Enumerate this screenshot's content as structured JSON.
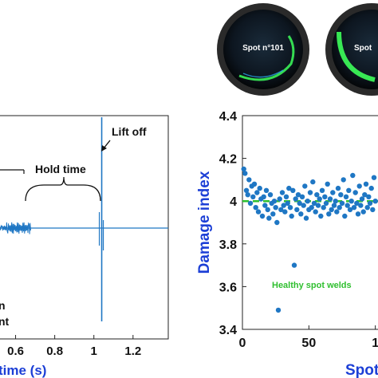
{
  "photos": [
    {
      "label": "Spot n°101"
    },
    {
      "label": "Spot"
    }
  ],
  "colors": {
    "trace": "#1f77c4",
    "points": "#1f77c4",
    "healthy_line": "#2fbf2f",
    "axis_label": "#1c3fd6",
    "ring_glow": "#3dff5a"
  },
  "chart_data": [
    {
      "type": "line",
      "xlabel": "time (s)",
      "xticks": [
        "0.6",
        "0.8",
        "1",
        "1.2"
      ],
      "xlim": [
        0.5,
        1.38
      ],
      "annotations": {
        "hold_time": "Hold time",
        "lift_off": "Lift off",
        "left_fragment_1": "n",
        "left_fragment_2": "nt"
      },
      "events": {
        "weld_end": 0.68,
        "lift_off": 1.04
      }
    },
    {
      "type": "scatter",
      "ylabel": "Damage index",
      "xlabel": "Spot",
      "xticks": [
        "0",
        "50",
        "1"
      ],
      "yticks": [
        "3.4",
        "3.6",
        "3.8",
        "4",
        "4.2",
        "4.4"
      ],
      "xlim": [
        0,
        108
      ],
      "ylim": [
        3.4,
        4.4
      ],
      "threshold": {
        "value": 4.0,
        "label": "Healthy spot welds"
      },
      "points": [
        [
          1,
          4.15
        ],
        [
          2,
          4.13
        ],
        [
          3,
          4.05
        ],
        [
          4,
          4.03
        ],
        [
          5,
          4.1
        ],
        [
          6,
          3.99
        ],
        [
          7,
          4.07
        ],
        [
          8,
          4.02
        ],
        [
          9,
          4.08
        ],
        [
          10,
          3.97
        ],
        [
          11,
          4.04
        ],
        [
          12,
          3.95
        ],
        [
          13,
          4.06
        ],
        [
          14,
          4.01
        ],
        [
          15,
          3.93
        ],
        [
          16,
          4.02
        ],
        [
          17,
          3.98
        ],
        [
          18,
          4.05
        ],
        [
          19,
          3.96
        ],
        [
          20,
          3.92
        ],
        [
          21,
          4.03
        ],
        [
          22,
          3.99
        ],
        [
          23,
          3.94
        ],
        [
          24,
          4.0
        ],
        [
          25,
          3.97
        ],
        [
          26,
          3.9
        ],
        [
          27,
          3.49
        ],
        [
          28,
          4.01
        ],
        [
          29,
          3.96
        ],
        [
          30,
          4.04
        ],
        [
          31,
          3.98
        ],
        [
          32,
          3.95
        ],
        [
          33,
          4.02
        ],
        [
          34,
          3.99
        ],
        [
          35,
          4.06
        ],
        [
          36,
          3.97
        ],
        [
          37,
          3.93
        ],
        [
          38,
          4.05
        ],
        [
          39,
          3.7
        ],
        [
          40,
          4.01
        ],
        [
          41,
          3.96
        ],
        [
          42,
          4.03
        ],
        [
          43,
          3.99
        ],
        [
          44,
          3.94
        ],
        [
          45,
          4.02
        ],
        [
          46,
          3.98
        ],
        [
          47,
          4.07
        ],
        [
          48,
          3.92
        ],
        [
          49,
          4.0
        ],
        [
          50,
          3.96
        ],
        [
          51,
          4.04
        ],
        [
          52,
          3.97
        ],
        [
          53,
          4.09
        ],
        [
          54,
          3.99
        ],
        [
          55,
          3.95
        ],
        [
          56,
          4.03
        ],
        [
          57,
          3.98
        ],
        [
          58,
          4.01
        ],
        [
          59,
          3.93
        ],
        [
          60,
          4.05
        ],
        [
          61,
          3.97
        ],
        [
          62,
          4.02
        ],
        [
          63,
          3.99
        ],
        [
          64,
          4.08
        ],
        [
          65,
          3.94
        ],
        [
          66,
          4.01
        ],
        [
          67,
          3.96
        ],
        [
          68,
          4.04
        ],
        [
          69,
          3.98
        ],
        [
          70,
          4.0
        ],
        [
          71,
          3.95
        ],
        [
          72,
          4.06
        ],
        [
          73,
          3.97
        ],
        [
          74,
          4.03
        ],
        [
          75,
          3.99
        ],
        [
          76,
          4.1
        ],
        [
          77,
          3.93
        ],
        [
          78,
          4.02
        ],
        [
          79,
          3.98
        ],
        [
          80,
          4.05
        ],
        [
          81,
          3.96
        ],
        [
          82,
          4.0
        ],
        [
          83,
          4.12
        ],
        [
          84,
          3.97
        ],
        [
          85,
          4.04
        ],
        [
          86,
          3.99
        ],
        [
          87,
          3.94
        ],
        [
          88,
          4.07
        ],
        [
          89,
          3.98
        ],
        [
          90,
          4.01
        ],
        [
          91,
          3.95
        ],
        [
          92,
          4.03
        ],
        [
          93,
          4.08
        ],
        [
          94,
          3.97
        ],
        [
          95,
          4.02
        ],
        [
          96,
          3.99
        ],
        [
          97,
          4.06
        ],
        [
          98,
          3.96
        ],
        [
          99,
          4.11
        ],
        [
          100,
          4.0
        ],
        [
          101,
          3.98
        ],
        [
          102,
          4.04
        ],
        [
          103,
          3.95
        ],
        [
          104,
          4.09
        ],
        [
          105,
          4.01
        ]
      ]
    }
  ]
}
